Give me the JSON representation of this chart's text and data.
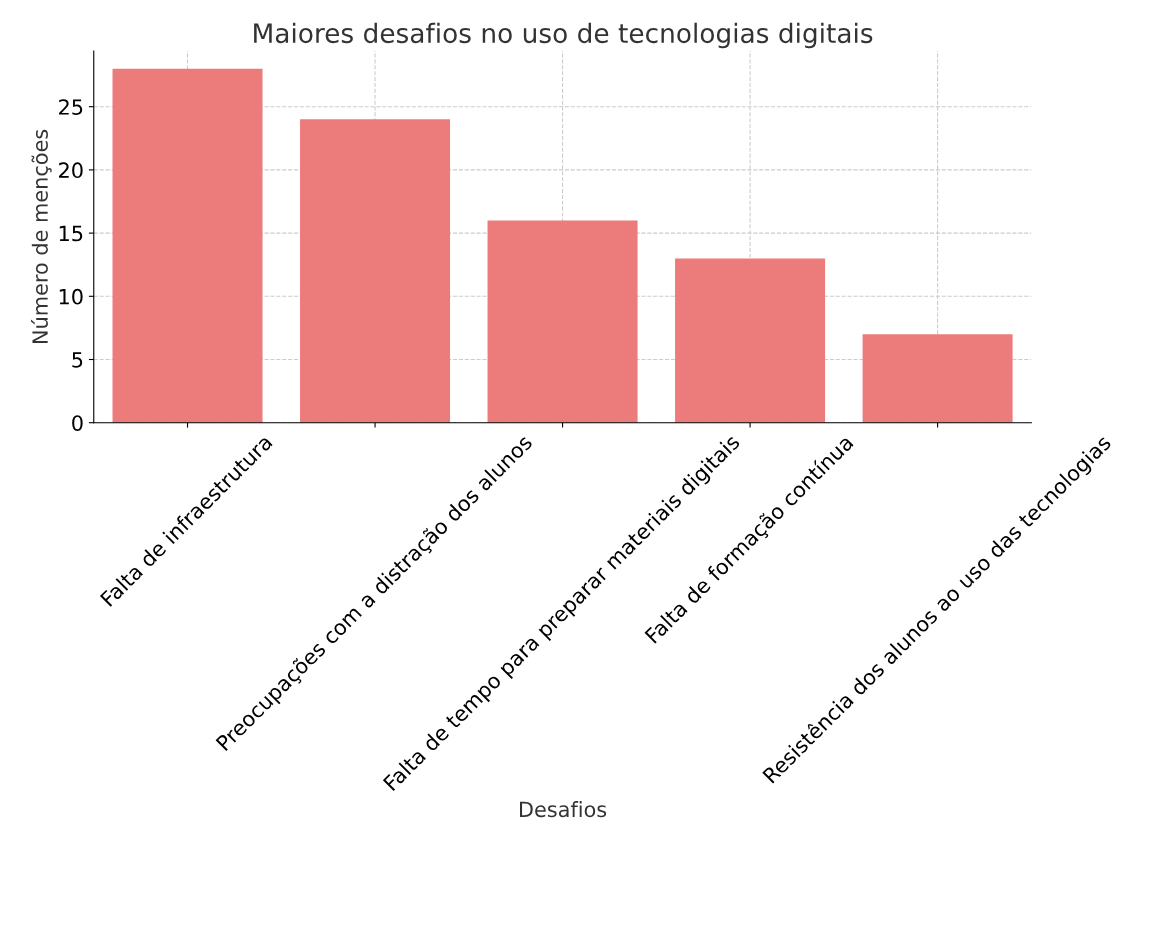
{
  "chart_data": {
    "type": "bar",
    "title": "Maiores desafios no uso de tecnologias digitais",
    "xlabel": "Desafios",
    "ylabel": "Número de menções",
    "categories": [
      "Falta de infraestrutura",
      "Preocupações com a distração dos alunos",
      "Falta de tempo para preparar materiais digitais",
      "Falta de formação contínua",
      "Resistência dos alunos ao uso das tecnologias"
    ],
    "values": [
      28,
      24,
      16,
      13,
      7
    ],
    "color": "#ec7b7b",
    "ylim": [
      0,
      29.4
    ],
    "yticks": [
      0,
      5,
      10,
      15,
      20,
      25
    ],
    "grid": true
  }
}
